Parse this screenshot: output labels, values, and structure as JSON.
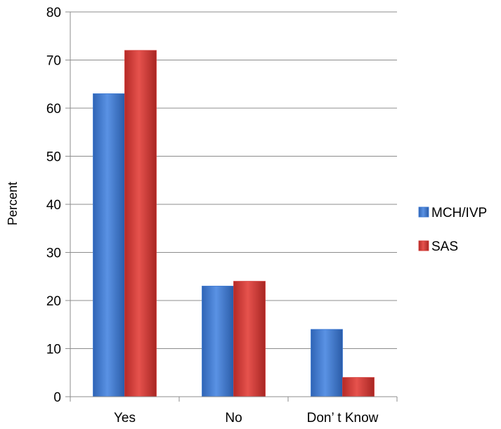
{
  "chart_data": {
    "type": "bar",
    "title": "",
    "xlabel": "",
    "ylabel": "Percent",
    "ylim": [
      0,
      80
    ],
    "yticks": [
      0,
      10,
      20,
      30,
      40,
      50,
      60,
      70,
      80
    ],
    "grid": true,
    "legend_position": "right",
    "categories": [
      "Yes",
      "No",
      "Don’ t Know"
    ],
    "series": [
      {
        "name": "MCH/IVP",
        "values": [
          63,
          23,
          14
        ],
        "color": "#3b78d2"
      },
      {
        "name": "SAS",
        "values": [
          72,
          24,
          4
        ],
        "color": "#d23a36"
      }
    ]
  }
}
